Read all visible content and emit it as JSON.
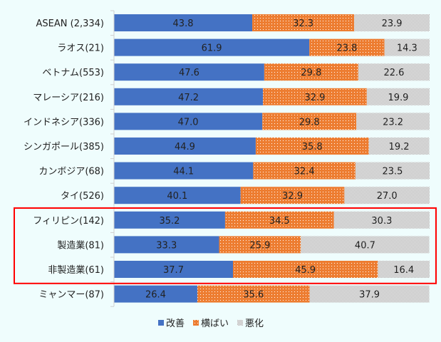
{
  "chart_data": {
    "type": "bar",
    "orientation": "horizontal",
    "stacked": true,
    "categories": [
      "ASEAN (2,334)",
      "ラオス(21)",
      "ベトナム(553)",
      "マレーシア(216)",
      "インドネシア(336)",
      "シンガポール(385)",
      "カンボジア(68)",
      "タイ(526)",
      "フィリピン(142)",
      "製造業(81)",
      "非製造業(61)",
      "ミャンマー(87)"
    ],
    "series": [
      {
        "name": "改善",
        "color": "#4472c4",
        "pattern": "solid",
        "values": [
          43.8,
          61.9,
          47.6,
          47.2,
          47.0,
          44.9,
          44.1,
          40.1,
          35.2,
          33.3,
          37.7,
          26.4
        ]
      },
      {
        "name": "横ばい",
        "color": "#ed7d31",
        "pattern": "dots",
        "values": [
          32.3,
          23.8,
          29.8,
          32.9,
          29.8,
          35.8,
          32.4,
          32.9,
          34.5,
          25.9,
          45.9,
          35.6
        ]
      },
      {
        "name": "悪化",
        "color": "#a6a6a6",
        "pattern": "checker",
        "values": [
          23.9,
          14.3,
          22.6,
          19.9,
          23.2,
          19.2,
          23.5,
          27.0,
          30.3,
          40.7,
          16.4,
          37.9
        ]
      }
    ],
    "xlim": [
      0,
      100
    ],
    "grid": false,
    "legend": "bottom",
    "highlight": {
      "categories": [
        "フィリピン(142)",
        "製造業(81)",
        "非製造業(61)"
      ],
      "color": "#ff0000"
    }
  }
}
